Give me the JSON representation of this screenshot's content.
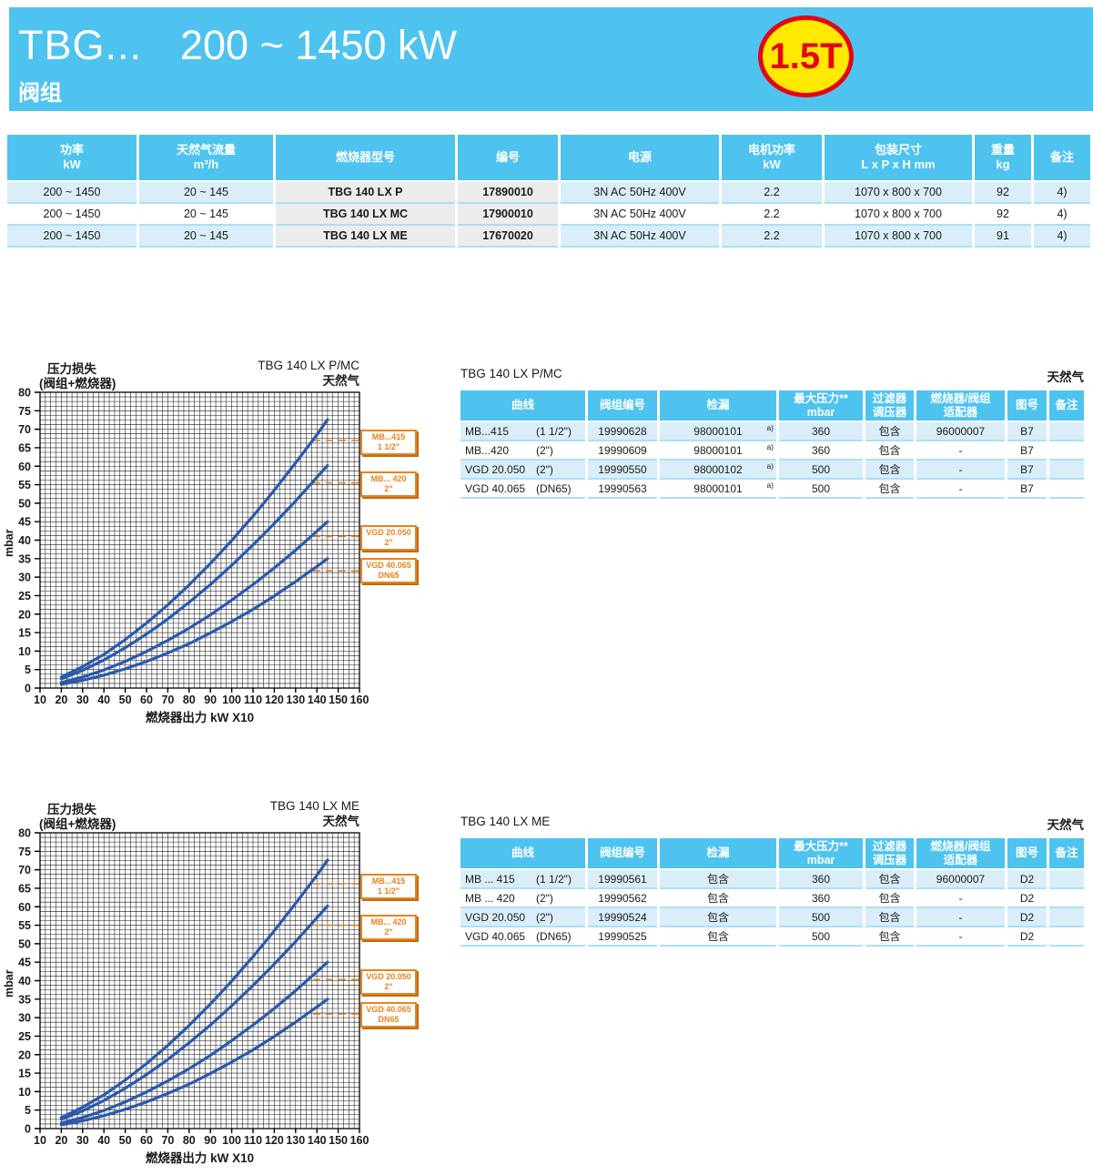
{
  "banner": {
    "title": "TBG...",
    "range": "200 ~ 1450 kW",
    "subtitle": "阀组",
    "badge": "1.5T"
  },
  "colors": {
    "accent_blue": "#4ec3ef",
    "row_blue": "#daeef9",
    "cell_gray": "#ececec",
    "curve_blue": "#2b59ab",
    "label_orange": "#e8831c",
    "badge_yellow": "#ffe900",
    "badge_red": "#e30613"
  },
  "main_table": {
    "headers": [
      [
        "功率",
        "kW"
      ],
      [
        "天然气流量",
        "m³/h"
      ],
      [
        "燃烧器型号"
      ],
      [
        "编号"
      ],
      [
        "电源"
      ],
      [
        "电机功率",
        "kW"
      ],
      [
        "包装尺寸",
        "L x P x H  mm"
      ],
      [
        "重量",
        "kg"
      ],
      [
        "备注"
      ]
    ],
    "rows": [
      [
        "200 ~ 1450",
        "20 ~ 145",
        "TBG 140 LX P",
        "17890010",
        "3N AC 50Hz 400V",
        "2.2",
        "1070 x 800 x 700",
        "92",
        "4)"
      ],
      [
        "200 ~ 1450",
        "20 ~ 145",
        "TBG 140 LX MC",
        "17900010",
        "3N AC 50Hz 400V",
        "2.2",
        "1070 x 800 x 700",
        "92",
        "4)"
      ],
      [
        "200 ~ 1450",
        "20 ~ 145",
        "TBG 140 LX ME",
        "17670020",
        "3N AC 50Hz 400V",
        "2.2",
        "1070 x 800 x 700",
        "91",
        "4)"
      ]
    ]
  },
  "chart_data": [
    {
      "type": "line",
      "title": "TBG 140 LX P/MC",
      "gas": "天然气",
      "corner_label_1": "压力损失",
      "corner_label_2": "(阀组+燃烧器)",
      "xlabel": "燃烧器出力  kW X10",
      "ylabel": "mbar",
      "xlim": [
        10,
        160
      ],
      "ylim": [
        0,
        80
      ],
      "x_tick_step": 10,
      "y_tick_step": 5,
      "minor_x": 2.5,
      "minor_y": 1.25,
      "x": [
        20,
        30,
        40,
        50,
        60,
        70,
        80,
        90,
        100,
        110,
        120,
        130,
        140,
        145
      ],
      "series": [
        {
          "name": "MB...415 (1 1/2\")",
          "values": [
            3,
            5.8,
            9.1,
            13.1,
            17.6,
            22.5,
            27.9,
            33.7,
            39.9,
            46.5,
            53.5,
            60.9,
            68.5,
            72.6
          ]
        },
        {
          "name": "MB...420 (2\")",
          "values": [
            2.5,
            4.8,
            7.6,
            10.9,
            14.6,
            18.7,
            23.2,
            28,
            33.2,
            38.7,
            44.5,
            50.6,
            57,
            60.2
          ]
        },
        {
          "name": "VGD 20.050 (2\")",
          "values": [
            1.5,
            3,
            4.9,
            7.2,
            9.9,
            12.9,
            16.2,
            19.8,
            23.8,
            28,
            32.5,
            37.3,
            42.4,
            45
          ]
        },
        {
          "name": "VGD 40.065 (DN65)",
          "values": [
            1,
            2.1,
            3.5,
            5.2,
            7.2,
            9.5,
            12,
            14.9,
            18,
            21.3,
            24.9,
            28.8,
            32.9,
            35
          ]
        }
      ],
      "annotations": [
        {
          "line1": "MB...415",
          "line2": "1 1/2\"",
          "at_mbar": 67
        },
        {
          "line1": "MB... 420",
          "line2": "2\"",
          "at_mbar": 55.5
        },
        {
          "line1": "VGD 20.050",
          "line2": "2\"",
          "at_mbar": 41
        },
        {
          "line1": "VGD 40.065",
          "line2": "DN65",
          "at_mbar": 31.7
        }
      ]
    },
    {
      "type": "line",
      "title": "TBG 140 LX ME",
      "gas": "天然气",
      "corner_label_1": "压力损失",
      "corner_label_2": "(阀组+燃烧器)",
      "xlabel": "燃烧器出力  kW X10",
      "ylabel": "mbar",
      "xlim": [
        10,
        160
      ],
      "ylim": [
        0,
        80
      ],
      "x_tick_step": 10,
      "y_tick_step": 5,
      "minor_x": 2.5,
      "minor_y": 1.25,
      "x": [
        20,
        30,
        40,
        50,
        60,
        70,
        80,
        90,
        100,
        110,
        120,
        130,
        140,
        145
      ],
      "series": [
        {
          "name": "MB...415 (1 1/2\")",
          "values": [
            3,
            5.8,
            9.1,
            13.1,
            17.6,
            22.5,
            27.9,
            33.7,
            39.9,
            46.5,
            53.5,
            60.9,
            68.5,
            72.6
          ]
        },
        {
          "name": "MB...420 (2\")",
          "values": [
            2.5,
            4.8,
            7.6,
            10.9,
            14.6,
            18.7,
            23.2,
            28,
            33.2,
            38.7,
            44.5,
            50.6,
            57,
            60.2
          ]
        },
        {
          "name": "VGD 20.050 (2\")",
          "values": [
            1.5,
            3,
            4.9,
            7.2,
            9.9,
            12.9,
            16.2,
            19.8,
            23.8,
            28,
            32.5,
            37.3,
            42.4,
            45
          ]
        },
        {
          "name": "VGD 40.065 (DN65)",
          "values": [
            1,
            2.1,
            3.5,
            5.2,
            7.2,
            9.5,
            12,
            14.9,
            18,
            21.3,
            24.9,
            28.8,
            32.9,
            35
          ]
        }
      ],
      "annotations": [
        {
          "line1": "MB...415",
          "line2": "1 1/2\"",
          "at_mbar": 66.2
        },
        {
          "line1": "MB... 420",
          "line2": "2\"",
          "at_mbar": 55
        },
        {
          "line1": "VGD 20.050",
          "line2": "2\"",
          "at_mbar": 40.3
        },
        {
          "line1": "VGD 40.065",
          "line2": "DN65",
          "at_mbar": 31
        }
      ]
    }
  ],
  "sub_tables": [
    {
      "title": "TBG 140 LX P/MC",
      "gas_label": "天然气",
      "headers": [
        [
          "曲线"
        ],
        [
          "阀组编号"
        ],
        [
          "检漏"
        ],
        [
          "最大压力**",
          "mbar"
        ],
        [
          "过滤器",
          "调压器"
        ],
        [
          "燃烧器/阀组",
          "适配器"
        ],
        [
          "图号"
        ],
        [
          "备注"
        ]
      ],
      "rows": [
        {
          "curve": "MB...415",
          "size": "(1 1/2\")",
          "group_no": "19990628",
          "leak": "98000101",
          "leak_sup": "a)",
          "max_p": "360",
          "filter": "包含",
          "adapter": "96000007",
          "fig": "B7",
          "note": ""
        },
        {
          "curve": "MB...420",
          "size": "(2\")",
          "group_no": "19990609",
          "leak": "98000101",
          "leak_sup": "a)",
          "max_p": "360",
          "filter": "包含",
          "adapter": "-",
          "fig": "B7",
          "note": ""
        },
        {
          "curve": "VGD 20.050",
          "size": "(2\")",
          "group_no": "19990550",
          "leak": "98000102",
          "leak_sup": "a)",
          "max_p": "500",
          "filter": "包含",
          "adapter": "-",
          "fig": "B7",
          "note": ""
        },
        {
          "curve": "VGD 40.065",
          "size": "(DN65)",
          "group_no": "19990563",
          "leak": "98000101",
          "leak_sup": "a)",
          "max_p": "500",
          "filter": "包含",
          "adapter": "-",
          "fig": "B7",
          "note": ""
        }
      ]
    },
    {
      "title": "TBG 140 LX ME",
      "gas_label": "天然气",
      "headers": [
        [
          "曲线"
        ],
        [
          "阀组编号"
        ],
        [
          "检漏"
        ],
        [
          "最大压力**",
          "mbar"
        ],
        [
          "过滤器",
          "调压器"
        ],
        [
          "燃烧器/阀组",
          "适配器"
        ],
        [
          "图号"
        ],
        [
          "备注"
        ]
      ],
      "rows": [
        {
          "curve": "MB ... 415",
          "size": "(1 1/2\")",
          "group_no": "19990561",
          "leak": "包含",
          "leak_sup": "",
          "max_p": "360",
          "filter": "包含",
          "adapter": "96000007",
          "fig": "D2",
          "note": ""
        },
        {
          "curve": "MB ... 420",
          "size": "(2\")",
          "group_no": "19990562",
          "leak": "包含",
          "leak_sup": "",
          "max_p": "360",
          "filter": "包含",
          "adapter": "-",
          "fig": "D2",
          "note": ""
        },
        {
          "curve": "VGD 20.050",
          "size": "(2\")",
          "group_no": "19990524",
          "leak": "包含",
          "leak_sup": "",
          "max_p": "500",
          "filter": "包含",
          "adapter": "-",
          "fig": "D2",
          "note": ""
        },
        {
          "curve": "VGD 40.065",
          "size": "(DN65)",
          "group_no": "19990525",
          "leak": "包含",
          "leak_sup": "",
          "max_p": "500",
          "filter": "包含",
          "adapter": "-",
          "fig": "D2",
          "note": ""
        }
      ]
    }
  ]
}
